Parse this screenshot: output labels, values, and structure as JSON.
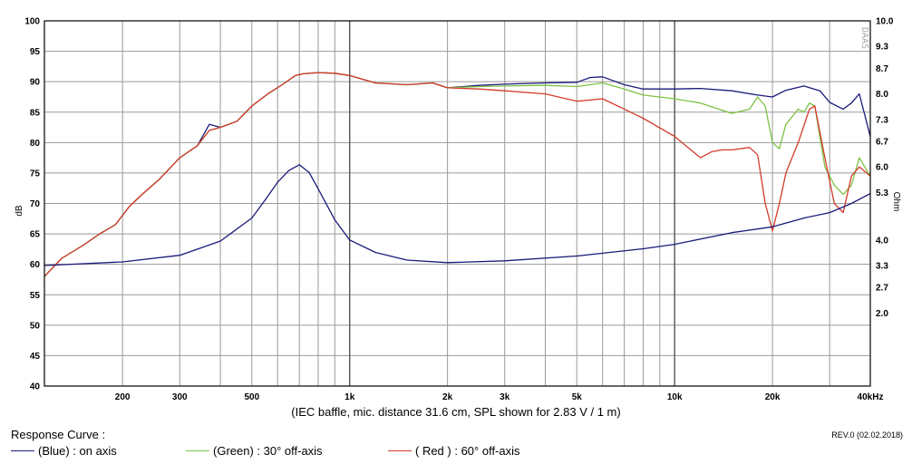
{
  "chart_data": {
    "type": "line",
    "caption": "(IEC baffle, mic. distance 31.6 cm, SPL shown for 2.83 V / 1 m)",
    "watermark": "DAAS",
    "x_scale": "log",
    "xlim": [
      115,
      40000
    ],
    "x_ticks": [
      {
        "value": 200,
        "label": "200"
      },
      {
        "value": 300,
        "label": "300"
      },
      {
        "value": 500,
        "label": "500"
      },
      {
        "value": 1000,
        "label": "1k"
      },
      {
        "value": 2000,
        "label": "2k"
      },
      {
        "value": 3000,
        "label": "3k"
      },
      {
        "value": 5000,
        "label": "5k"
      },
      {
        "value": 10000,
        "label": "10k"
      },
      {
        "value": 20000,
        "label": "20k"
      },
      {
        "value": 40000,
        "label": "40kHz"
      }
    ],
    "y_left": {
      "label": "dB",
      "lim": [
        40,
        100
      ],
      "ticks": [
        40,
        45,
        50,
        55,
        60,
        65,
        70,
        75,
        80,
        85,
        90,
        95,
        100
      ]
    },
    "y_right": {
      "label": "Ohm",
      "lim": [
        0,
        10
      ],
      "ticks": [
        {
          "value": 2.0,
          "label": "2.0"
        },
        {
          "value": 2.7,
          "label": "2.7"
        },
        {
          "value": 3.3,
          "label": "3.3"
        },
        {
          "value": 4.0,
          "label": "4.0"
        },
        {
          "value": 5.3,
          "label": "5.3"
        },
        {
          "value": 6.0,
          "label": "6.0"
        },
        {
          "value": 6.7,
          "label": "6.7"
        },
        {
          "value": 7.3,
          "label": "7.3"
        },
        {
          "value": 8.0,
          "label": "8.0"
        },
        {
          "value": 8.7,
          "label": "8.7"
        },
        {
          "value": 9.3,
          "label": "9.3"
        },
        {
          "value": 10.0,
          "label": "10.0"
        }
      ]
    },
    "grid": true,
    "series": [
      {
        "name": "(Blue) : on axis",
        "color": "#1a1a7a",
        "axis": "left",
        "x": [
          115,
          130,
          150,
          170,
          190,
          210,
          230,
          260,
          300,
          340,
          370,
          400,
          450,
          500,
          560,
          620,
          680,
          720,
          800,
          900,
          1000,
          1200,
          1500,
          1800,
          2000,
          2500,
          3000,
          4000,
          5000,
          5500,
          6000,
          7000,
          8000,
          10000,
          12000,
          15000,
          18000,
          20000,
          22000,
          25000,
          28000,
          30000,
          33000,
          35000,
          37000,
          40000
        ],
        "y": [
          58,
          61,
          63,
          65,
          66.5,
          69.5,
          71.5,
          74,
          77.5,
          79.5,
          83,
          82.5,
          83.5,
          86,
          88,
          89.5,
          91,
          91.3,
          91.5,
          91.4,
          91,
          89.8,
          89.5,
          89.8,
          89.0,
          89.4,
          89.6,
          89.8,
          89.9,
          90.7,
          90.8,
          89.5,
          88.8,
          88.8,
          88.9,
          88.5,
          87.8,
          87.5,
          88.6,
          89.3,
          88.5,
          86.6,
          85.5,
          86.5,
          88.0,
          81
        ]
      },
      {
        "name": "(Green) : 30° off-axis",
        "color": "#7cc242",
        "axis": "left",
        "x": [
          115,
          130,
          150,
          170,
          190,
          210,
          230,
          260,
          300,
          340,
          370,
          400,
          450,
          500,
          560,
          620,
          680,
          720,
          800,
          900,
          1000,
          1200,
          1500,
          1800,
          2000,
          2500,
          3000,
          4000,
          5000,
          6000,
          7000,
          8000,
          10000,
          12000,
          15000,
          17000,
          18000,
          19000,
          20000,
          21000,
          22000,
          24000,
          25000,
          26000,
          27000,
          29000,
          31000,
          33000,
          35000,
          37000,
          40000
        ],
        "y": [
          58,
          61,
          63,
          65,
          66.5,
          69.5,
          71.5,
          74,
          77.5,
          79.5,
          82,
          82.5,
          83.5,
          86,
          88,
          89.5,
          91,
          91.3,
          91.5,
          91.4,
          91,
          89.8,
          89.5,
          89.8,
          89.0,
          89.2,
          89.3,
          89.4,
          89.2,
          89.8,
          88.8,
          87.8,
          87.2,
          86.5,
          84.8,
          85.5,
          87.5,
          86.0,
          80.0,
          79.0,
          83.0,
          85.5,
          85.0,
          86.5,
          86.0,
          76.0,
          73.0,
          71.5,
          73.0,
          77.5,
          74.5
        ]
      },
      {
        "name": "( Red ) : 60° off-axis",
        "color": "#d43a2a",
        "axis": "left",
        "x": [
          115,
          130,
          150,
          170,
          190,
          210,
          230,
          260,
          300,
          340,
          370,
          400,
          450,
          500,
          560,
          620,
          680,
          720,
          800,
          900,
          1000,
          1200,
          1500,
          1800,
          2000,
          2500,
          3000,
          4000,
          5000,
          6000,
          7000,
          8000,
          10000,
          12000,
          13000,
          14000,
          15000,
          17000,
          18000,
          19000,
          20000,
          21000,
          22000,
          24000,
          26000,
          27000,
          29000,
          31000,
          33000,
          35000,
          37000,
          40000
        ],
        "y": [
          58,
          61,
          63,
          65,
          66.5,
          69.5,
          71.5,
          74,
          77.5,
          79.5,
          82,
          82.5,
          83.5,
          86,
          88,
          89.5,
          91,
          91.3,
          91.5,
          91.4,
          91,
          89.8,
          89.5,
          89.8,
          89.0,
          88.8,
          88.5,
          88.0,
          86.8,
          87.2,
          85.5,
          84.0,
          81.0,
          77.5,
          78.5,
          78.8,
          78.8,
          79.2,
          78.0,
          70.0,
          65.5,
          70.0,
          75.0,
          80.0,
          85.5,
          86.0,
          77.5,
          70.0,
          68.5,
          74.5,
          76.0,
          74.5
        ]
      },
      {
        "name": "Impedance",
        "color": "#1a1a7a",
        "axis": "right",
        "x": [
          115,
          200,
          300,
          400,
          500,
          550,
          600,
          650,
          700,
          750,
          800,
          900,
          1000,
          1200,
          1500,
          2000,
          3000,
          5000,
          8000,
          10000,
          15000,
          20000,
          25000,
          30000,
          35000,
          40000
        ],
        "y": [
          3.3,
          3.4,
          3.58,
          3.97,
          4.6,
          5.1,
          5.58,
          5.9,
          6.06,
          5.85,
          5.4,
          4.55,
          4.0,
          3.66,
          3.45,
          3.38,
          3.43,
          3.56,
          3.76,
          3.88,
          4.2,
          4.36,
          4.6,
          4.75,
          5.0,
          5.27
        ]
      }
    ]
  },
  "legend": {
    "title": "Response Curve :",
    "items": [
      {
        "label": "(Blue)  : on axis",
        "color": "#1a1a7a"
      },
      {
        "label": "(Green) : 30° off-axis",
        "color": "#7cc242"
      },
      {
        "label": "( Red ) : 60° off-axis",
        "color": "#d43a2a"
      }
    ],
    "revision": "REV.0 (02.02.2018)"
  }
}
